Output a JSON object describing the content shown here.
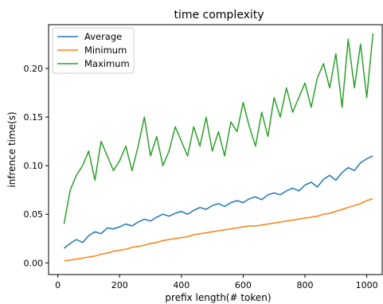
{
  "chart_data": {
    "type": "line",
    "title": "time complexity",
    "xlabel": "prefix length(# token)",
    "ylabel": "infrence time(s)",
    "xlim": [
      -30,
      1050
    ],
    "ylim": [
      -0.012,
      0.245
    ],
    "xticks": [
      0,
      200,
      400,
      600,
      800,
      1000
    ],
    "yticks": [
      0.0,
      0.05,
      0.1,
      0.15,
      0.2
    ],
    "grid": false,
    "legend_position": "top-left",
    "series": [
      {
        "name": "Average",
        "color": "#1f77b4",
        "x": [
          20,
          40,
          60,
          80,
          100,
          120,
          140,
          160,
          180,
          200,
          220,
          240,
          260,
          280,
          300,
          320,
          340,
          360,
          380,
          400,
          420,
          440,
          460,
          480,
          500,
          520,
          540,
          560,
          580,
          600,
          620,
          640,
          660,
          680,
          700,
          720,
          740,
          760,
          780,
          800,
          820,
          840,
          860,
          880,
          900,
          920,
          940,
          960,
          980,
          1000,
          1020
        ],
        "values": [
          0.015,
          0.02,
          0.024,
          0.021,
          0.028,
          0.032,
          0.03,
          0.036,
          0.035,
          0.037,
          0.04,
          0.038,
          0.042,
          0.045,
          0.043,
          0.047,
          0.05,
          0.048,
          0.051,
          0.053,
          0.05,
          0.054,
          0.057,
          0.055,
          0.059,
          0.061,
          0.058,
          0.062,
          0.064,
          0.062,
          0.066,
          0.068,
          0.065,
          0.07,
          0.072,
          0.07,
          0.074,
          0.077,
          0.074,
          0.08,
          0.083,
          0.078,
          0.086,
          0.09,
          0.085,
          0.093,
          0.098,
          0.095,
          0.103,
          0.107,
          0.11
        ]
      },
      {
        "name": "Minimum",
        "color": "#ff7f0e",
        "x": [
          20,
          40,
          60,
          80,
          100,
          120,
          140,
          160,
          180,
          200,
          220,
          240,
          260,
          280,
          300,
          320,
          340,
          360,
          380,
          400,
          420,
          440,
          460,
          480,
          500,
          520,
          540,
          560,
          580,
          600,
          620,
          640,
          660,
          680,
          700,
          720,
          740,
          760,
          780,
          800,
          820,
          840,
          860,
          880,
          900,
          920,
          940,
          960,
          980,
          1000,
          1020
        ],
        "values": [
          0.002,
          0.003,
          0.004,
          0.005,
          0.006,
          0.007,
          0.009,
          0.01,
          0.012,
          0.013,
          0.014,
          0.016,
          0.017,
          0.018,
          0.02,
          0.021,
          0.023,
          0.024,
          0.025,
          0.026,
          0.027,
          0.029,
          0.03,
          0.031,
          0.032,
          0.033,
          0.034,
          0.035,
          0.036,
          0.037,
          0.038,
          0.038,
          0.039,
          0.04,
          0.041,
          0.042,
          0.043,
          0.044,
          0.045,
          0.046,
          0.047,
          0.048,
          0.05,
          0.051,
          0.053,
          0.055,
          0.057,
          0.059,
          0.061,
          0.064,
          0.066
        ]
      },
      {
        "name": "Maximum",
        "color": "#2ca02c",
        "x": [
          20,
          40,
          60,
          80,
          100,
          120,
          140,
          160,
          180,
          200,
          220,
          240,
          260,
          280,
          300,
          320,
          340,
          360,
          380,
          400,
          420,
          440,
          460,
          480,
          500,
          520,
          540,
          560,
          580,
          600,
          620,
          640,
          660,
          680,
          700,
          720,
          740,
          760,
          780,
          800,
          820,
          840,
          860,
          880,
          900,
          920,
          940,
          960,
          980,
          1000,
          1020
        ],
        "values": [
          0.04,
          0.075,
          0.09,
          0.1,
          0.115,
          0.085,
          0.125,
          0.11,
          0.095,
          0.105,
          0.12,
          0.095,
          0.12,
          0.15,
          0.11,
          0.13,
          0.1,
          0.115,
          0.14,
          0.125,
          0.11,
          0.14,
          0.12,
          0.15,
          0.115,
          0.135,
          0.11,
          0.145,
          0.135,
          0.165,
          0.14,
          0.12,
          0.155,
          0.13,
          0.17,
          0.15,
          0.18,
          0.155,
          0.17,
          0.185,
          0.16,
          0.19,
          0.205,
          0.18,
          0.215,
          0.16,
          0.23,
          0.18,
          0.225,
          0.17,
          0.236
        ]
      }
    ]
  }
}
